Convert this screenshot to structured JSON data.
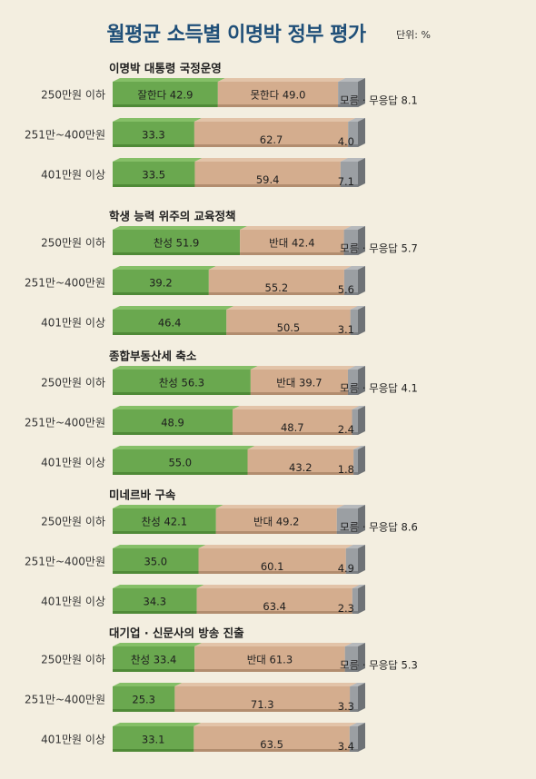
{
  "title": "월평균 소득별 이명박 정부 평가",
  "unit": "단위: %",
  "chart_data": [
    {
      "type": "bar",
      "stacked": true,
      "orientation": "horizontal",
      "title": "이명박 대통령 국정운영",
      "categories": [
        "250만원 이하",
        "251만~400만원",
        "401만원 이상"
      ],
      "series": [
        {
          "name": "잘한다",
          "values": [
            42.9,
            33.3,
            33.5
          ],
          "color": "#6aa84f"
        },
        {
          "name": "못한다",
          "values": [
            49.0,
            62.7,
            59.4
          ],
          "color": "#d4ad8e"
        },
        {
          "name": "모름 · 무응답",
          "values": [
            8.1,
            4.0,
            7.1
          ],
          "color": "#9b9fa3"
        }
      ],
      "labels": [
        [
          "잘한다 42.9",
          "못한다 49.0",
          "모름 · 무응답 8.1"
        ],
        [
          "33.3",
          "62.7",
          "4.0"
        ],
        [
          "33.5",
          "59.4",
          "7.1"
        ]
      ]
    },
    {
      "type": "bar",
      "stacked": true,
      "orientation": "horizontal",
      "title": "학생 능력 위주의 교육정책",
      "categories": [
        "250만원 이하",
        "251만~400만원",
        "401만원 이상"
      ],
      "series": [
        {
          "name": "찬성",
          "values": [
            51.9,
            39.2,
            46.4
          ],
          "color": "#6aa84f"
        },
        {
          "name": "반대",
          "values": [
            42.4,
            55.2,
            50.5
          ],
          "color": "#d4ad8e"
        },
        {
          "name": "모름 · 무응답",
          "values": [
            5.7,
            5.6,
            3.1
          ],
          "color": "#9b9fa3"
        }
      ],
      "labels": [
        [
          "찬성 51.9",
          "반대 42.4",
          "모름 · 무응답 5.7"
        ],
        [
          "39.2",
          "55.2",
          "5.6"
        ],
        [
          "46.4",
          "50.5",
          "3.1"
        ]
      ]
    },
    {
      "type": "bar",
      "stacked": true,
      "orientation": "horizontal",
      "title": "종합부동산세 축소",
      "categories": [
        "250만원 이하",
        "251만~400만원",
        "401만원 이상"
      ],
      "series": [
        {
          "name": "찬성",
          "values": [
            56.3,
            48.9,
            55.0
          ],
          "color": "#6aa84f"
        },
        {
          "name": "반대",
          "values": [
            39.7,
            48.7,
            43.2
          ],
          "color": "#d4ad8e"
        },
        {
          "name": "모름 · 무응답",
          "values": [
            4.1,
            2.4,
            1.8
          ],
          "color": "#9b9fa3"
        }
      ],
      "labels": [
        [
          "찬성 56.3",
          "반대 39.7",
          "모름 · 무응답 4.1"
        ],
        [
          "48.9",
          "48.7",
          "2.4"
        ],
        [
          "55.0",
          "43.2",
          "1.8"
        ]
      ]
    },
    {
      "type": "bar",
      "stacked": true,
      "orientation": "horizontal",
      "title": "미네르바 구속",
      "categories": [
        "250만원 이하",
        "251만~400만원",
        "401만원 이상"
      ],
      "series": [
        {
          "name": "찬성",
          "values": [
            42.1,
            35.0,
            34.3
          ],
          "color": "#6aa84f"
        },
        {
          "name": "반대",
          "values": [
            49.2,
            60.1,
            63.4
          ],
          "color": "#d4ad8e"
        },
        {
          "name": "모름 · 무응답",
          "values": [
            8.6,
            4.9,
            2.3
          ],
          "color": "#9b9fa3"
        }
      ],
      "labels": [
        [
          "찬성 42.1",
          "반대 49.2",
          "모름 · 무응답 8.6"
        ],
        [
          "35.0",
          "60.1",
          "4.9"
        ],
        [
          "34.3",
          "63.4",
          "2.3"
        ]
      ]
    },
    {
      "type": "bar",
      "stacked": true,
      "orientation": "horizontal",
      "title": "대기업 · 신문사의 방송 진출",
      "categories": [
        "250만원 이하",
        "251만~400만원",
        "401만원 이상"
      ],
      "series": [
        {
          "name": "찬성",
          "values": [
            33.4,
            25.3,
            33.1
          ],
          "color": "#6aa84f"
        },
        {
          "name": "반대",
          "values": [
            61.3,
            71.3,
            63.5
          ],
          "color": "#d4ad8e"
        },
        {
          "name": "모름 · 무응답",
          "values": [
            5.3,
            3.3,
            3.4
          ],
          "color": "#9b9fa3"
        }
      ],
      "labels": [
        [
          "찬성 33.4",
          "반대 61.3",
          "모름 · 무응답 5.3"
        ],
        [
          "25.3",
          "71.3",
          "3.3"
        ],
        [
          "33.1",
          "63.5",
          "3.4"
        ]
      ]
    }
  ]
}
